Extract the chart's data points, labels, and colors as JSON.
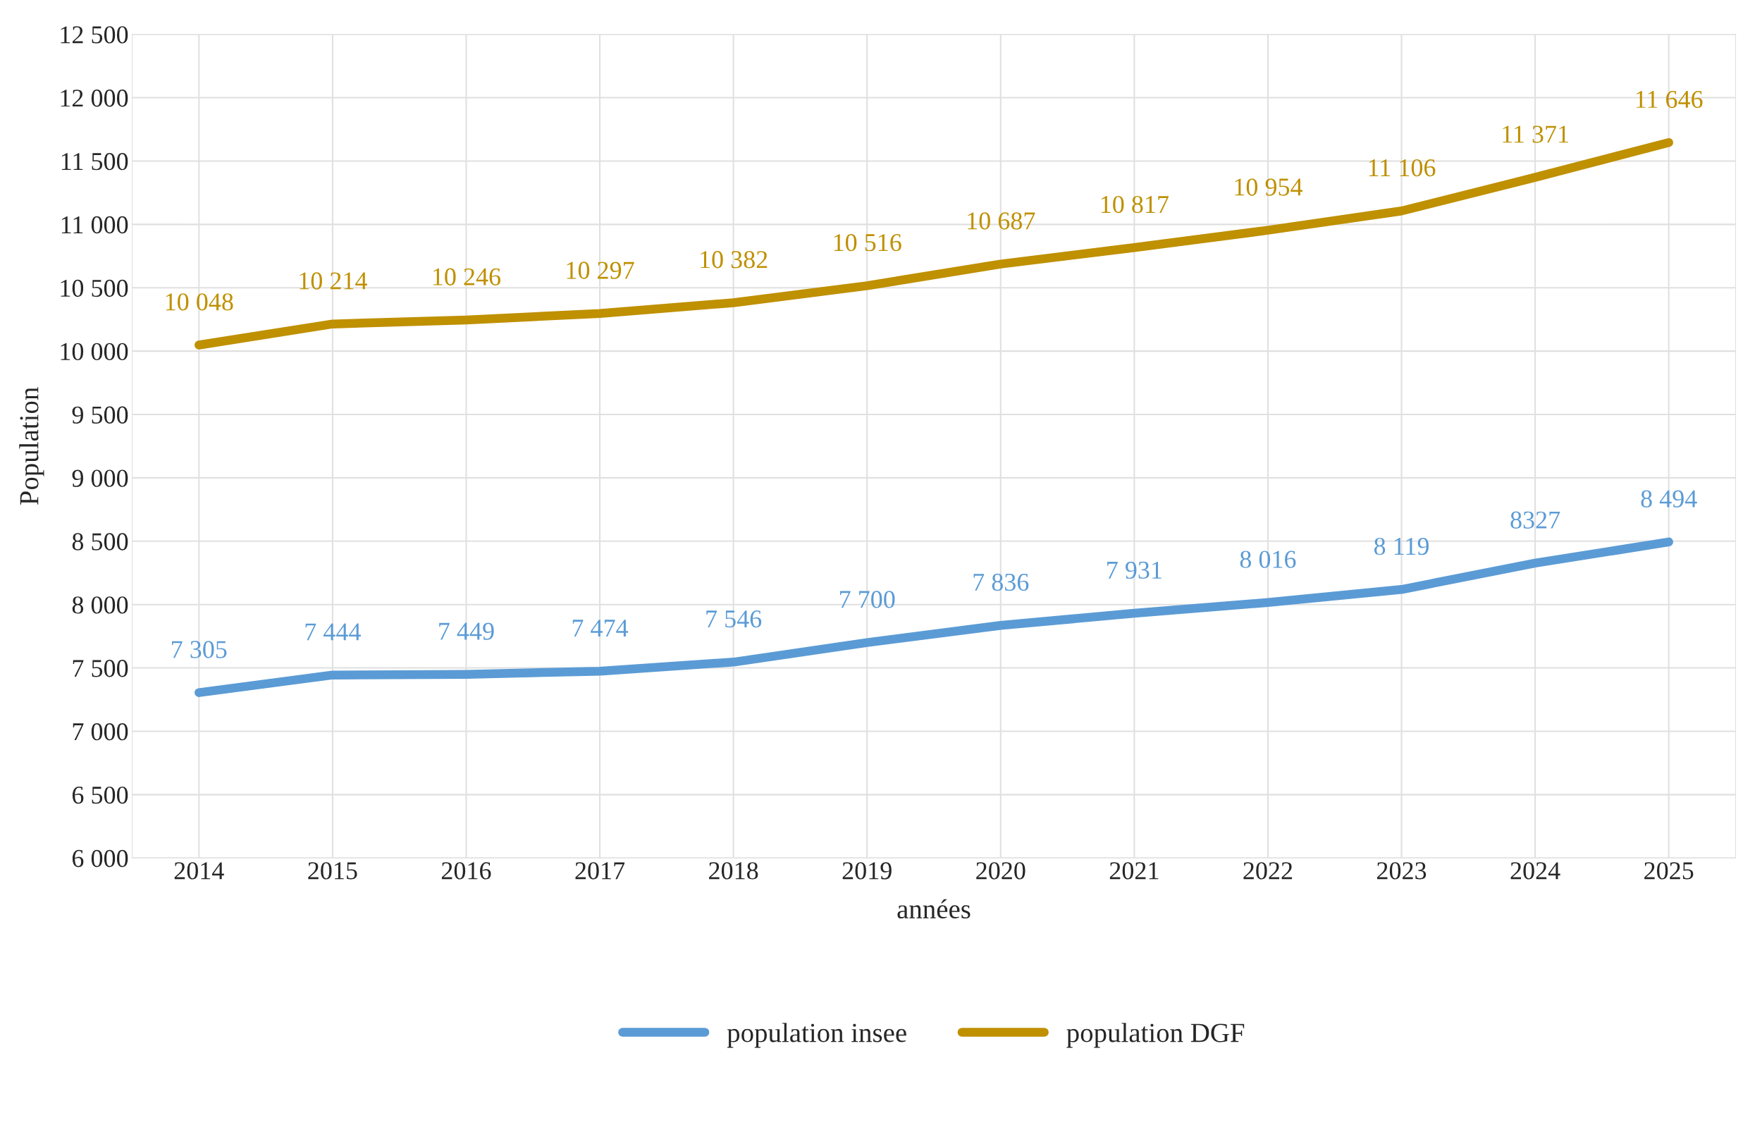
{
  "chart_data": {
    "type": "line",
    "xlabel": "années",
    "ylabel": "Population",
    "categories": [
      "2014",
      "2015",
      "2016",
      "2017",
      "2018",
      "2019",
      "2020",
      "2021",
      "2022",
      "2023",
      "2024",
      "2025"
    ],
    "series": [
      {
        "name": "population insee",
        "color": "#5b9bd5",
        "values": [
          7305,
          7444,
          7449,
          7474,
          7546,
          7700,
          7836,
          7931,
          8016,
          8119,
          8327,
          8494
        ],
        "value_labels": [
          "7 305",
          "7 444",
          "7 449",
          "7 474",
          "7 546",
          "7 700",
          "7 836",
          "7 931",
          "8 016",
          "8 119",
          "8327",
          "8 494"
        ]
      },
      {
        "name": "population DGF",
        "color": "#bf9000",
        "values": [
          10048,
          10214,
          10246,
          10297,
          10382,
          10516,
          10687,
          10817,
          10954,
          11106,
          11371,
          11646
        ],
        "value_labels": [
          "10 048",
          "10 214",
          "10 246",
          "10 297",
          "10 382",
          "10 516",
          "10 687",
          "10 817",
          "10 954",
          "11 106",
          "11 371",
          "11 646"
        ]
      }
    ],
    "ylim": [
      6000,
      12500
    ],
    "yticks": [
      {
        "value": 6000,
        "label": "6 000"
      },
      {
        "value": 6500,
        "label": "6 500"
      },
      {
        "value": 7000,
        "label": "7 000"
      },
      {
        "value": 7500,
        "label": "7 500"
      },
      {
        "value": 8000,
        "label": "8 000"
      },
      {
        "value": 8500,
        "label": "8 500"
      },
      {
        "value": 9000,
        "label": "9 000"
      },
      {
        "value": 9500,
        "label": "9 500"
      },
      {
        "value": 10000,
        "label": "10 000"
      },
      {
        "value": 10500,
        "label": "10 500"
      },
      {
        "value": 11000,
        "label": "11 000"
      },
      {
        "value": 11500,
        "label": "11 500"
      },
      {
        "value": 12000,
        "label": "12 000"
      },
      {
        "value": 12500,
        "label": "12 500"
      }
    ],
    "grid": true,
    "legend": "bottom",
    "marker": "none",
    "line_style": "solid"
  }
}
